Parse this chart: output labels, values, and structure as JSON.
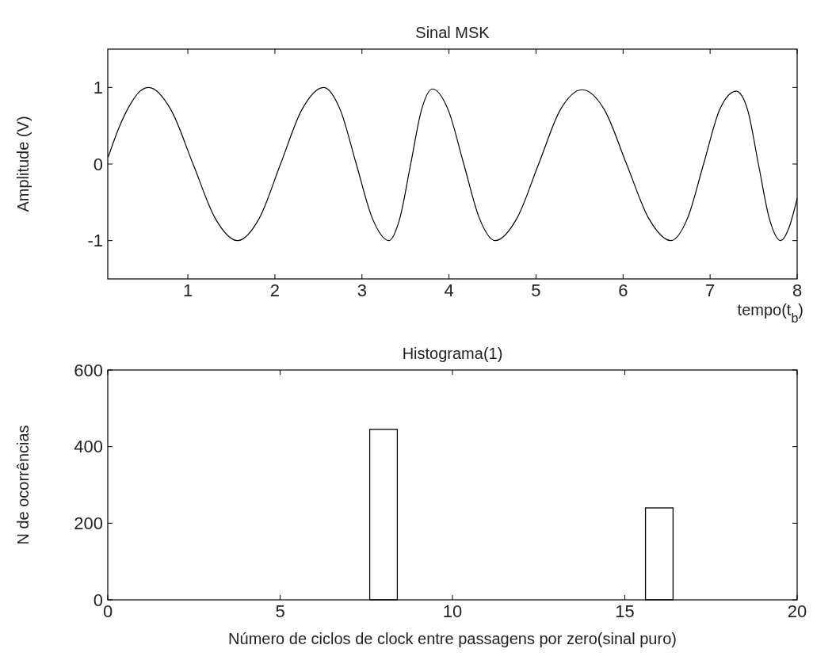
{
  "chart_data": [
    {
      "type": "line",
      "title": "Sinal MSK",
      "xlabel": "tempo(t$_{b}$)",
      "ylabel": "Amplitude (V)",
      "xlim": [
        0.08,
        8
      ],
      "ylim": [
        -1.5,
        1.5
      ],
      "xticks": [
        1,
        2,
        3,
        4,
        5,
        6,
        7,
        8
      ],
      "yticks": [
        -1,
        0,
        1
      ],
      "grid": false,
      "marker": "none",
      "line_style": "solid",
      "series": [
        {
          "color": "#000000",
          "x": [
            0.085,
            0.2,
            0.35,
            0.45,
            0.55,
            0.805,
            1.06,
            1.315,
            1.57,
            1.82,
            2.065,
            2.31,
            2.56,
            2.75,
            2.935,
            3.12,
            3.31,
            3.435,
            3.56,
            3.685,
            3.81,
            3.99,
            4.17,
            4.35,
            4.53,
            4.78,
            5.03,
            5.28,
            5.53,
            5.785,
            6.04,
            6.295,
            6.55,
            6.74,
            6.925,
            7.11,
            7.3,
            7.43,
            7.555,
            7.68,
            7.81,
            7.9,
            8.0
          ],
          "values": [
            0.09,
            0.45,
            0.8,
            0.95,
            1,
            0.71,
            0,
            -0.71,
            -1,
            -0.71,
            0,
            0.71,
            1,
            0.71,
            0,
            -0.71,
            -1,
            -0.71,
            0,
            0.71,
            0.98,
            0.71,
            0,
            -0.71,
            -1,
            -0.71,
            0,
            0.71,
            0.97,
            0.71,
            0,
            -0.71,
            -1,
            -0.71,
            0,
            0.71,
            0.95,
            0.71,
            0,
            -0.71,
            -1,
            -0.85,
            -0.45
          ]
        }
      ]
    },
    {
      "type": "histogram",
      "title": "Histograma(1)",
      "xlabel": "Número de ciclos de clock entre passagens por zero(sinal puro)",
      "ylabel": "N  de ocorrências",
      "xlim": [
        0,
        20
      ],
      "ylim": [
        0,
        600
      ],
      "xticks": [
        0,
        5,
        10,
        15,
        20
      ],
      "yticks": [
        0,
        200,
        400,
        600
      ],
      "grid": false,
      "color": "#ffffff",
      "bins": [
        7.6,
        8.4,
        15.6,
        16.4
      ],
      "values": [
        445,
        0,
        240
      ]
    }
  ]
}
